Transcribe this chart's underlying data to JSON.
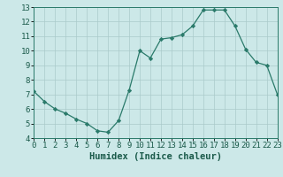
{
  "x": [
    0,
    1,
    2,
    3,
    4,
    5,
    6,
    7,
    8,
    9,
    10,
    11,
    12,
    13,
    14,
    15,
    16,
    17,
    18,
    19,
    20,
    21,
    22,
    23
  ],
  "y": [
    7.2,
    6.5,
    6.0,
    5.7,
    5.3,
    5.0,
    4.5,
    4.4,
    5.2,
    7.3,
    10.0,
    9.5,
    10.8,
    10.9,
    11.1,
    11.7,
    12.8,
    12.8,
    12.8,
    11.7,
    10.1,
    9.2,
    9.0,
    7.0
  ],
  "xlabel": "Humidex (Indice chaleur)",
  "xlim": [
    0,
    23
  ],
  "ylim": [
    4,
    13
  ],
  "xticks": [
    0,
    1,
    2,
    3,
    4,
    5,
    6,
    7,
    8,
    9,
    10,
    11,
    12,
    13,
    14,
    15,
    16,
    17,
    18,
    19,
    20,
    21,
    22,
    23
  ],
  "yticks": [
    4,
    5,
    6,
    7,
    8,
    9,
    10,
    11,
    12,
    13
  ],
  "line_color": "#2a7a6a",
  "bg_color": "#cce8e8",
  "grid_color": "#aacaca",
  "xlabel_fontsize": 7.5,
  "tick_fontsize": 6.5
}
